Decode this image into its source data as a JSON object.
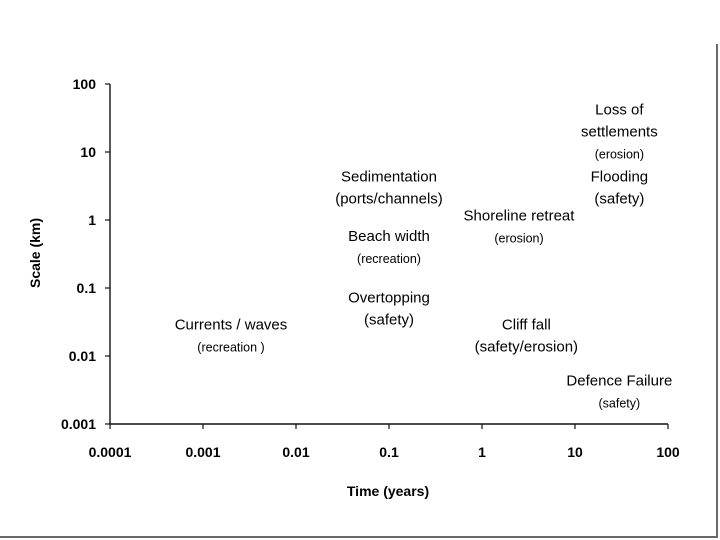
{
  "chart_data": {
    "type": "scatter",
    "xlabel": "Time (years)",
    "ylabel": "Scale (km)",
    "xscale": "log",
    "yscale": "log",
    "xlim": [
      0.0001,
      100
    ],
    "ylim": [
      0.001,
      100
    ],
    "xticks": [
      "0.0001",
      "0.001",
      "0.01",
      "0.1",
      "1",
      "10",
      "100"
    ],
    "yticks": [
      "0.001",
      "0.01",
      "0.1",
      "1",
      "10",
      "100"
    ],
    "grid": false,
    "annotations": [
      {
        "lines": [
          "Loss of",
          "settlements"
        ],
        "sub": "(erosion)",
        "x": 30,
        "y": 20
      },
      {
        "lines": [
          "Flooding"
        ],
        "sub": "(safety)",
        "x": 30,
        "y": 3
      },
      {
        "lines": [
          "Sedimentation"
        ],
        "sub": "(ports/channels)",
        "x": 0.1,
        "y": 3
      },
      {
        "lines": [
          "Shoreline retreat"
        ],
        "sub": "(erosion)",
        "x": 2.5,
        "y": 0.8
      },
      {
        "lines": [
          "Beach width"
        ],
        "sub": "(recreation)",
        "x": 0.1,
        "y": 0.4
      },
      {
        "lines": [
          "Overtopping"
        ],
        "sub": "(safety)",
        "x": 0.1,
        "y": 0.05
      },
      {
        "lines": [
          "Currents / waves"
        ],
        "sub": "(recreation )",
        "x": 0.002,
        "y": 0.02
      },
      {
        "lines": [
          "Cliff fall"
        ],
        "sub": "(safety/erosion)",
        "x": 3,
        "y": 0.02
      },
      {
        "lines": [
          "Defence Failure"
        ],
        "sub": "(safety)",
        "x": 30,
        "y": 0.003
      }
    ]
  }
}
